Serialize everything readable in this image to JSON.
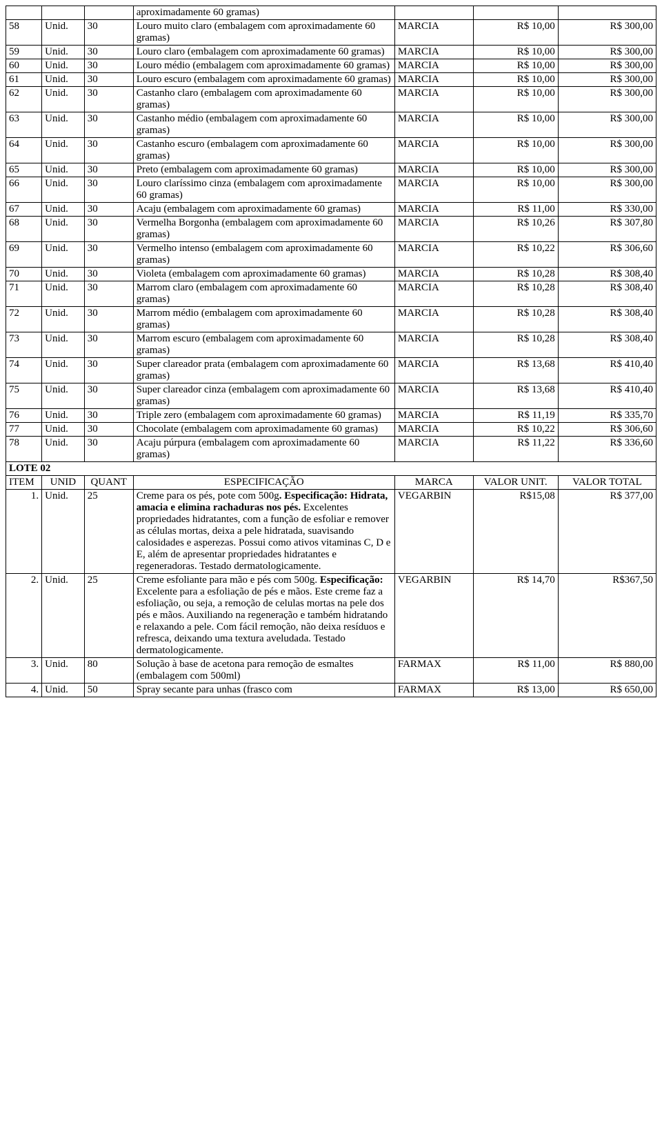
{
  "lote1_rows": [
    {
      "item": "",
      "unid": "",
      "quant": "",
      "espec": "aproximadamente 60 gramas)",
      "marca": "",
      "unit": "",
      "total": ""
    },
    {
      "item": "58",
      "unid": "Unid.",
      "quant": "30",
      "espec": "Louro muito claro (embalagem com aproximadamente 60 gramas)",
      "marca": "MARCIA",
      "unit": "R$ 10,00",
      "total": "R$ 300,00"
    },
    {
      "item": "59",
      "unid": "Unid.",
      "quant": "30",
      "espec": "Louro claro (embalagem com aproximadamente 60 gramas)",
      "marca": "MARCIA",
      "unit": "R$ 10,00",
      "total": "R$ 300,00"
    },
    {
      "item": "60",
      "unid": "Unid.",
      "quant": "30",
      "espec": "Louro médio (embalagem com aproximadamente 60 gramas)",
      "marca": "MARCIA",
      "unit": "R$ 10,00",
      "total": "R$ 300,00"
    },
    {
      "item": "61",
      "unid": "Unid.",
      "quant": "30",
      "espec": "Louro escuro (embalagem com aproximadamente 60 gramas)",
      "marca": "MARCIA",
      "unit": "R$ 10,00",
      "total": "R$ 300,00"
    },
    {
      "item": "62",
      "unid": "Unid.",
      "quant": "30",
      "espec": "Castanho claro (embalagem com aproximadamente 60 gramas)",
      "marca": "MARCIA",
      "unit": "R$ 10,00",
      "total": "R$ 300,00"
    },
    {
      "item": "63",
      "unid": "Unid.",
      "quant": "30",
      "espec": "Castanho médio (embalagem com aproximadamente 60 gramas)",
      "marca": "MARCIA",
      "unit": "R$ 10,00",
      "total": "R$ 300,00"
    },
    {
      "item": "64",
      "unid": "Unid.",
      "quant": "30",
      "espec": "Castanho escuro (embalagem com aproximadamente 60 gramas)",
      "marca": "MARCIA",
      "unit": "R$ 10,00",
      "total": "R$ 300,00"
    },
    {
      "item": "65",
      "unid": "Unid.",
      "quant": "30",
      "espec": "Preto (embalagem com aproximadamente 60 gramas)",
      "marca": "MARCIA",
      "unit": "R$ 10,00",
      "total": "R$ 300,00"
    },
    {
      "item": "66",
      "unid": "Unid.",
      "quant": "30",
      "espec": "Louro claríssimo cinza (embalagem com aproximadamente 60 gramas)",
      "marca": "MARCIA",
      "unit": "R$ 10,00",
      "total": "R$ 300,00"
    },
    {
      "item": "67",
      "unid": "Unid.",
      "quant": "30",
      "espec": "Acaju (embalagem com aproximadamente 60 gramas)",
      "marca": "MARCIA",
      "unit": "R$ 11,00",
      "total": "R$ 330,00"
    },
    {
      "item": "68",
      "unid": "Unid.",
      "quant": "30",
      "espec": "Vermelha Borgonha (embalagem com aproximadamente 60 gramas)",
      "marca": "MARCIA",
      "unit": "R$ 10,26",
      "total": "R$ 307,80"
    },
    {
      "item": "69",
      "unid": "Unid.",
      "quant": "30",
      "espec": "Vermelho intenso (embalagem com aproximadamente 60 gramas)",
      "marca": "MARCIA",
      "unit": "R$ 10,22",
      "total": "R$ 306,60"
    },
    {
      "item": "70",
      "unid": "Unid.",
      "quant": "30",
      "espec": "Violeta (embalagem com aproximadamente 60 gramas)",
      "marca": "MARCIA",
      "unit": "R$ 10,28",
      "total": "R$ 308,40"
    },
    {
      "item": "71",
      "unid": "Unid.",
      "quant": "30",
      "espec": "Marrom claro (embalagem com aproximadamente 60 gramas)",
      "marca": "MARCIA",
      "unit": "R$ 10,28",
      "total": "R$ 308,40"
    },
    {
      "item": "72",
      "unid": "Unid.",
      "quant": "30",
      "espec": "Marrom médio (embalagem com aproximadamente 60 gramas)",
      "marca": "MARCIA",
      "unit": "R$ 10,28",
      "total": "R$ 308,40"
    },
    {
      "item": "73",
      "unid": "Unid.",
      "quant": "30",
      "espec": "Marrom escuro (embalagem com aproximadamente 60 gramas)",
      "marca": "MARCIA",
      "unit": "R$ 10,28",
      "total": "R$ 308,40"
    },
    {
      "item": "74",
      "unid": "Unid.",
      "quant": "30",
      "espec": "Super clareador prata (embalagem com aproximadamente 60 gramas)",
      "marca": "MARCIA",
      "unit": "R$ 13,68",
      "total": "R$ 410,40"
    },
    {
      "item": "75",
      "unid": "Unid.",
      "quant": "30",
      "espec": "Super clareador cinza (embalagem com aproximadamente 60 gramas)",
      "marca": "MARCIA",
      "unit": "R$ 13,68",
      "total": "R$ 410,40"
    },
    {
      "item": "76",
      "unid": "Unid.",
      "quant": "30",
      "espec": "Triple zero (embalagem com aproximadamente 60 gramas)",
      "marca": "MARCIA",
      "unit": "R$ 11,19",
      "total": "R$ 335,70"
    },
    {
      "item": "77",
      "unid": "Unid.",
      "quant": "30",
      "espec": "Chocolate (embalagem com aproximadamente 60 gramas)",
      "marca": "MARCIA",
      "unit": "R$ 10,22",
      "total": "R$ 306,60"
    },
    {
      "item": "78",
      "unid": "Unid.",
      "quant": "30",
      "espec": "Acaju púrpura (embalagem com aproximadamente 60 gramas)",
      "marca": "MARCIA",
      "unit": "R$ 11,22",
      "total": "R$ 336,60"
    }
  ],
  "lote2_label": "LOTE 02",
  "lote2_headers": {
    "item": "ITEM",
    "unid": "UNID",
    "quant": "QUANT",
    "espec": "ESPECIFICAÇÃO",
    "marca": "MARCA",
    "unit": "VALOR UNIT.",
    "total": "VALOR TOTAL"
  },
  "lote2_rows": [
    {
      "item": "1.",
      "unid": "Unid.",
      "quant": "25",
      "espec_prefix": "Creme para os pés, pote com 500g",
      "espec_bold": ". Especificação: Hidrata, amacia e elimina rachaduras nos pés.",
      "espec_suffix": " Excelentes propriedades hidratantes, com a função de esfoliar e remover as células mortas, deixa a pele hidratada, suavisando calosidades e asperezas. Possui como ativos vitaminas C, D e E, além de apresentar propriedades hidratantes e regeneradoras. Testado dermatologicamente.",
      "marca": "VEGARBIN",
      "unit": "R$15,08",
      "total": "R$ 377,00"
    },
    {
      "item": "2.",
      "unid": "Unid.",
      "quant": "25",
      "espec_prefix": "Creme esfoliante para mão e pés com 500g. ",
      "espec_bold": "Especificação:",
      "espec_suffix": " Excelente para a esfoliação de pés e mãos. Este creme faz a esfoliação, ou seja, a remoção de celulas mortas na pele dos pés e mãos. Auxiliando na regeneração e também hidratando e relaxando a pele. Com fácil remoção, não deixa resíduos e refresca, deixando uma textura aveludada. Testado dermatologicamente.",
      "marca": "VEGARBIN",
      "unit": "R$ 14,70",
      "total": "R$367,50"
    },
    {
      "item": "3.",
      "unid": "Unid.",
      "quant": "80",
      "espec_prefix": "Solução à base de acetona para remoção de esmaltes (embalagem com 500ml)",
      "espec_bold": "",
      "espec_suffix": "",
      "marca": "FARMAX",
      "unit": "R$ 11,00",
      "total": "R$ 880,00"
    },
    {
      "item": "4.",
      "unid": "Unid.",
      "quant": "50",
      "espec_prefix": "Spray secante para unhas (frasco com",
      "espec_bold": "",
      "espec_suffix": "",
      "marca": "FARMAX",
      "unit": "R$ 13,00",
      "total": "R$ 650,00"
    }
  ]
}
